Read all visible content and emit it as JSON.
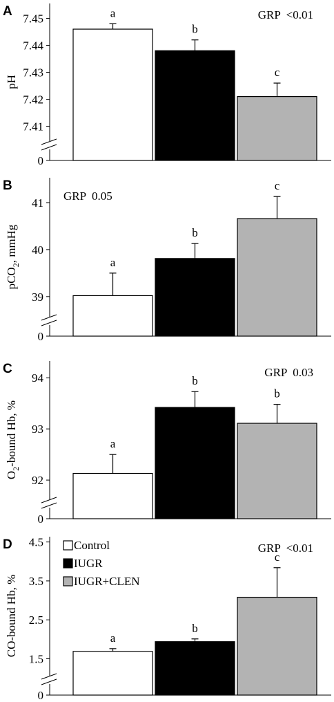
{
  "colors": {
    "Control": "#ffffff",
    "IUGR": "#000000",
    "IUGR+CLEN": "#b3b3b3",
    "stroke": "#000000"
  },
  "legend": {
    "panel": 3,
    "entries": [
      {
        "series": "Control",
        "label": "Control"
      },
      {
        "series": "IUGR",
        "label": "IUGR"
      },
      {
        "series": "IUGR+CLEN",
        "label": "IUGR+CLEN"
      }
    ]
  },
  "chart_data": [
    {
      "type": "bar",
      "panel": "A",
      "ylabel": "pH",
      "ylabel_sub": "",
      "ylabel_post": "",
      "annotation": "GRP  <0.01",
      "annotation_align": "right",
      "categories": [
        "Control",
        "IUGR",
        "IUGR+CLEN"
      ],
      "values": [
        7.446,
        7.438,
        7.421
      ],
      "errors": [
        0.002,
        0.004,
        0.005
      ],
      "letters": [
        "a",
        "b",
        "c"
      ],
      "ylim": [
        7.405,
        7.455
      ],
      "yticks": [
        7.41,
        7.42,
        7.43,
        7.44,
        7.45
      ],
      "ytick_labels": [
        "7.41",
        "7.42",
        "7.43",
        "7.44",
        "7.45"
      ],
      "axis_break": true,
      "zero_label": "0"
    },
    {
      "type": "bar",
      "panel": "B",
      "ylabel": "pCO",
      "ylabel_sub": "2",
      "ylabel_post": ", mmHg",
      "annotation": "GRP  0.05",
      "annotation_align": "left",
      "categories": [
        "Control",
        "IUGR",
        "IUGR+CLEN"
      ],
      "values": [
        39.02,
        39.81,
        40.66
      ],
      "errors": [
        0.48,
        0.32,
        0.47
      ],
      "letters": [
        "a",
        "b",
        "c"
      ],
      "ylim": [
        38.6,
        41.5
      ],
      "yticks": [
        39,
        40,
        41
      ],
      "ytick_labels": [
        "39",
        "40",
        "41"
      ],
      "axis_break": true,
      "zero_label": "0"
    },
    {
      "type": "bar",
      "panel": "C",
      "ylabel": "O",
      "ylabel_sub": "2",
      "ylabel_post": "-bound Hb, %",
      "annotation": "GRP  0.03",
      "annotation_align": "right",
      "categories": [
        "Control",
        "IUGR",
        "IUGR+CLEN"
      ],
      "values": [
        92.13,
        93.42,
        93.11
      ],
      "errors": [
        0.37,
        0.31,
        0.37
      ],
      "letters": [
        "a",
        "b",
        "b"
      ],
      "ylim": [
        91.65,
        94.3
      ],
      "yticks": [
        92,
        93,
        94
      ],
      "ytick_labels": [
        "92",
        "93",
        "94"
      ],
      "axis_break": true,
      "zero_label": "0"
    },
    {
      "type": "bar",
      "panel": "D",
      "ylabel": "CO-bound Hb, %",
      "ylabel_sub": "",
      "ylabel_post": "",
      "annotation": "GRP  <0.01",
      "annotation_align": "right",
      "categories": [
        "Control",
        "IUGR",
        "IUGR+CLEN"
      ],
      "values": [
        1.69,
        1.94,
        3.08
      ],
      "errors": [
        0.07,
        0.07,
        0.76
      ],
      "letters": [
        "a",
        "b",
        "c"
      ],
      "ylim": [
        1.1,
        4.6
      ],
      "yticks": [
        1.5,
        2.5,
        3.5,
        4.5
      ],
      "ytick_labels": [
        "1.5",
        "2.5",
        "3.5",
        "4.5"
      ],
      "axis_break": true,
      "zero_label": "0"
    }
  ]
}
